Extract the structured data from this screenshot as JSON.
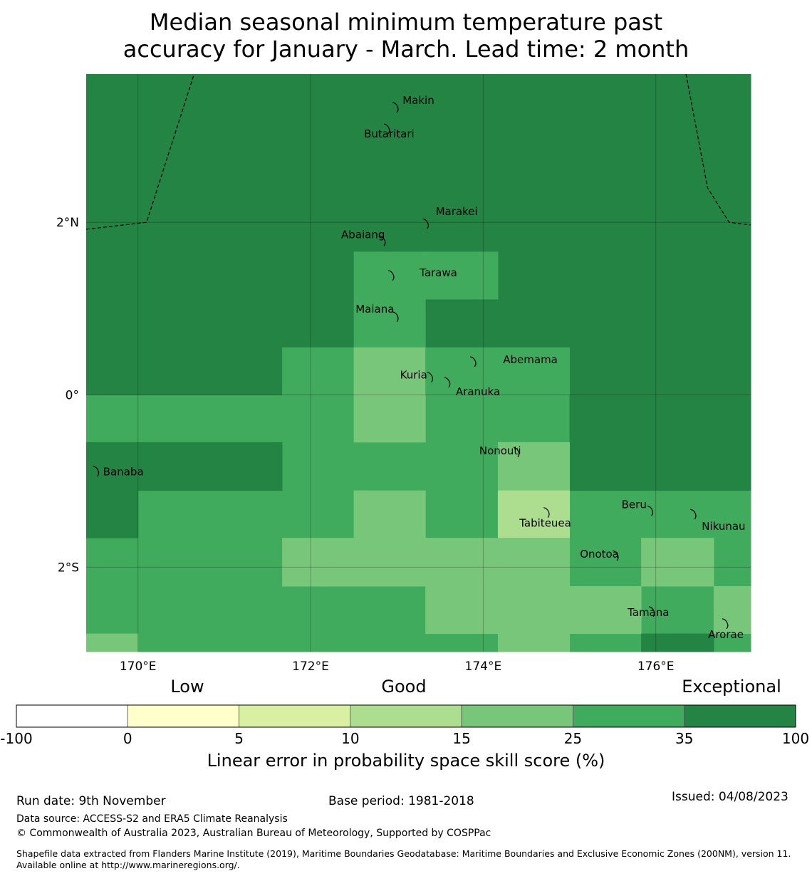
{
  "title": {
    "line1": "Median seasonal minimum temperature past",
    "line2": "accuracy for January - March. Lead time: 2 month"
  },
  "map": {
    "lon_range": [
      169.4,
      177.1
    ],
    "lat_range": [
      -2.98,
      3.72
    ],
    "lon_ticks": [
      {
        "value": 170,
        "label": "170°E"
      },
      {
        "value": 172,
        "label": "172°E"
      },
      {
        "value": 174,
        "label": "174°E"
      },
      {
        "value": 176,
        "label": "176°E"
      }
    ],
    "lat_ticks": [
      {
        "value": 2,
        "label": "2°N"
      },
      {
        "value": 0,
        "label": "0°"
      },
      {
        "value": -2,
        "label": "2°S"
      }
    ],
    "grid_cells": [
      {
        "lon": [
          169.4,
          177.1
        ],
        "lat": [
          0.0,
          3.72
        ],
        "color": "#238443"
      },
      {
        "lon": [
          169.4,
          177.1
        ],
        "lat": [
          -2.98,
          0.0
        ],
        "color": "#41ab5d"
      },
      {
        "lon": [
          169.4,
          171.67
        ],
        "lat": [
          0.0,
          0.55
        ],
        "color": "#238443"
      },
      {
        "lon": [
          172.5,
          173.33
        ],
        "lat": [
          1.11,
          1.66
        ],
        "color": "#41ab5d"
      },
      {
        "lon": [
          173.33,
          174.17
        ],
        "lat": [
          1.11,
          1.66
        ],
        "color": "#41ab5d"
      },
      {
        "lon": [
          172.5,
          173.33
        ],
        "lat": [
          0.55,
          1.11
        ],
        "color": "#41ab5d"
      },
      {
        "lon": [
          171.67,
          172.5
        ],
        "lat": [
          0.0,
          0.55
        ],
        "color": "#41ab5d"
      },
      {
        "lon": [
          172.5,
          173.33
        ],
        "lat": [
          0.0,
          0.55
        ],
        "color": "#78c679"
      },
      {
        "lon": [
          173.33,
          175.0
        ],
        "lat": [
          0.0,
          0.55
        ],
        "color": "#41ab5d"
      },
      {
        "lon": [
          175.0,
          177.1
        ],
        "lat": [
          -1.11,
          0.0
        ],
        "color": "#238443"
      },
      {
        "lon": [
          172.5,
          173.33
        ],
        "lat": [
          -0.55,
          0.0
        ],
        "color": "#78c679"
      },
      {
        "lon": [
          169.4,
          171.67
        ],
        "lat": [
          -1.11,
          -0.55
        ],
        "color": "#238443"
      },
      {
        "lon": [
          169.4,
          170.0
        ],
        "lat": [
          -1.66,
          -1.11
        ],
        "color": "#238443"
      },
      {
        "lon": [
          174.17,
          175.0
        ],
        "lat": [
          -1.11,
          -0.55
        ],
        "color": "#78c679"
      },
      {
        "lon": [
          172.5,
          173.33
        ],
        "lat": [
          -1.66,
          -1.11
        ],
        "color": "#78c679"
      },
      {
        "lon": [
          174.17,
          175.0
        ],
        "lat": [
          -1.66,
          -1.11
        ],
        "color": "#addd8e"
      },
      {
        "lon": [
          171.67,
          175.0
        ],
        "lat": [
          -2.22,
          -1.66
        ],
        "color": "#78c679"
      },
      {
        "lon": [
          173.33,
          175.0
        ],
        "lat": [
          -2.77,
          -2.22
        ],
        "color": "#78c679"
      },
      {
        "lon": [
          174.17,
          175.0
        ],
        "lat": [
          -2.98,
          -2.77
        ],
        "color": "#78c679"
      },
      {
        "lon": [
          175.0,
          175.83
        ],
        "lat": [
          -2.77,
          -2.22
        ],
        "color": "#78c679"
      },
      {
        "lon": [
          175.83,
          176.67
        ],
        "lat": [
          -2.22,
          -1.66
        ],
        "color": "#78c679"
      },
      {
        "lon": [
          176.67,
          177.1
        ],
        "lat": [
          -2.77,
          -2.22
        ],
        "color": "#78c679"
      },
      {
        "lon": [
          175.83,
          176.67
        ],
        "lat": [
          -2.98,
          -2.77
        ],
        "color": "#238443"
      },
      {
        "lon": [
          169.4,
          170.0
        ],
        "lat": [
          -2.98,
          -2.77
        ],
        "color": "#78c679"
      }
    ],
    "boundaries": [
      [
        [
          169.4,
          1.92
        ],
        [
          170.1,
          2.0
        ],
        [
          170.65,
          3.72
        ]
      ],
      [
        [
          176.35,
          3.72
        ],
        [
          176.6,
          2.4
        ],
        [
          176.85,
          2.0
        ],
        [
          177.1,
          1.97
        ]
      ]
    ],
    "islands": [
      {
        "name": "Makin",
        "lon": 173.0,
        "lat": 3.35,
        "label_dx": 8,
        "label_dy": -3
      },
      {
        "name": "Butaritari",
        "lon": 172.9,
        "lat": 3.1,
        "label_dx": -34,
        "label_dy": 14
      },
      {
        "name": "Marakei",
        "lon": 173.35,
        "lat": 2.0,
        "label_dx": 12,
        "label_dy": -10
      },
      {
        "name": "Abaiang",
        "lon": 172.85,
        "lat": 1.8,
        "label_dx": -60,
        "label_dy": -2
      },
      {
        "name": "Tarawa",
        "lon": 172.95,
        "lat": 1.4,
        "label_dx": 38,
        "label_dy": 3
      },
      {
        "name": "Maiana",
        "lon": 173.0,
        "lat": 0.92,
        "label_dx": -58,
        "label_dy": -4
      },
      {
        "name": "Abemama",
        "lon": 173.9,
        "lat": 0.4,
        "label_dx": 40,
        "label_dy": 4
      },
      {
        "name": "Kuria",
        "lon": 173.4,
        "lat": 0.22,
        "label_dx": -44,
        "label_dy": 4
      },
      {
        "name": "Aranuka",
        "lon": 173.6,
        "lat": 0.16,
        "label_dx": 10,
        "label_dy": 20
      },
      {
        "name": "Nonouti",
        "lon": 174.4,
        "lat": -0.65,
        "label_dx": -54,
        "label_dy": 5
      },
      {
        "name": "Banaba",
        "lon": 169.53,
        "lat": -0.87,
        "label_dx": 8,
        "label_dy": 8
      },
      {
        "name": "Tabiteuea",
        "lon": 174.75,
        "lat": -1.35,
        "label_dx": -40,
        "label_dy": 22
      },
      {
        "name": "Beru",
        "lon": 175.95,
        "lat": -1.33,
        "label_dx": -42,
        "label_dy": -2
      },
      {
        "name": "Nikunau",
        "lon": 176.45,
        "lat": -1.37,
        "label_dx": 10,
        "label_dy": 24
      },
      {
        "name": "Onotoa",
        "lon": 175.55,
        "lat": -1.85,
        "label_dx": -52,
        "label_dy": 5
      },
      {
        "name": "Tamana",
        "lon": 175.97,
        "lat": -2.5,
        "label_dx": -36,
        "label_dy": 8
      },
      {
        "name": "Arorae",
        "lon": 176.82,
        "lat": -2.64,
        "label_dx": -26,
        "label_dy": 22
      }
    ]
  },
  "colorbar": {
    "categories": [
      "Low",
      "Good",
      "Exceptional"
    ],
    "bins": [
      {
        "from": -100,
        "to": 0,
        "color": "#ffffff"
      },
      {
        "from": 0,
        "to": 5,
        "color": "#ffffcc"
      },
      {
        "from": 5,
        "to": 10,
        "color": "#d9f0a3"
      },
      {
        "from": 10,
        "to": 15,
        "color": "#addd8e"
      },
      {
        "from": 15,
        "to": 25,
        "color": "#78c679"
      },
      {
        "from": 25,
        "to": 35,
        "color": "#41ab5d"
      },
      {
        "from": 35,
        "to": 100,
        "color": "#238443"
      }
    ],
    "ticks": [
      "-100",
      "0",
      "5",
      "10",
      "15",
      "25",
      "35",
      "100"
    ],
    "label": "Linear error in probability space skill score (%)"
  },
  "footer": {
    "run_date": "Run date: 9th November",
    "base_period": "Base period: 1981-2018",
    "issued": "Issued: 04/08/2023",
    "data_source": "Data source: ACCESS-S2 and ERA5 Climate Reanalysis",
    "copyright": "© Commonwealth of Australia 2023, Australian Bureau of Meteorology, Supported by COSPPac",
    "shapefile": "Shapefile data extracted from Flanders Marine Institute (2019), Maritime Boundaries Geodatabase: Maritime Boundaries and Exclusive Economic Zones (200NM), version 11. Available online at http://www.marineregions.org/."
  }
}
